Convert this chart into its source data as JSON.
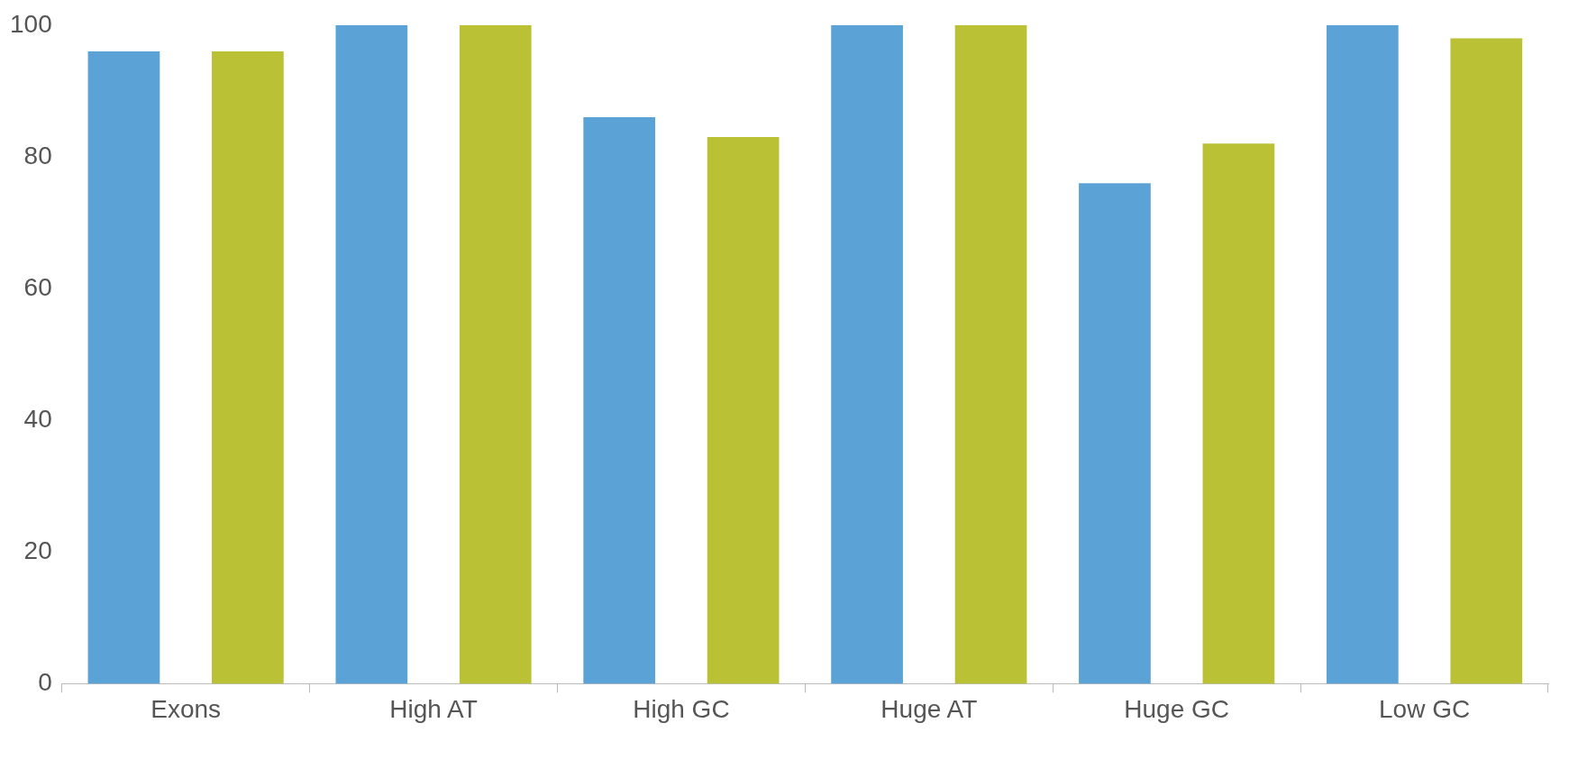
{
  "chart_data": {
    "type": "bar",
    "categories": [
      "Exons",
      "High AT",
      "High GC",
      "Huge AT",
      "Huge GC",
      "Low GC"
    ],
    "series": [
      {
        "color": "#5ba3d6",
        "values": [
          96,
          100,
          86,
          100,
          76,
          100
        ]
      },
      {
        "color": "#bbc135",
        "values": [
          96,
          100,
          83,
          100,
          82,
          98
        ]
      }
    ],
    "ylim": [
      0,
      100
    ],
    "yticks": [
      0,
      20,
      40,
      60,
      80,
      100
    ],
    "grid": false,
    "legend": false
  }
}
